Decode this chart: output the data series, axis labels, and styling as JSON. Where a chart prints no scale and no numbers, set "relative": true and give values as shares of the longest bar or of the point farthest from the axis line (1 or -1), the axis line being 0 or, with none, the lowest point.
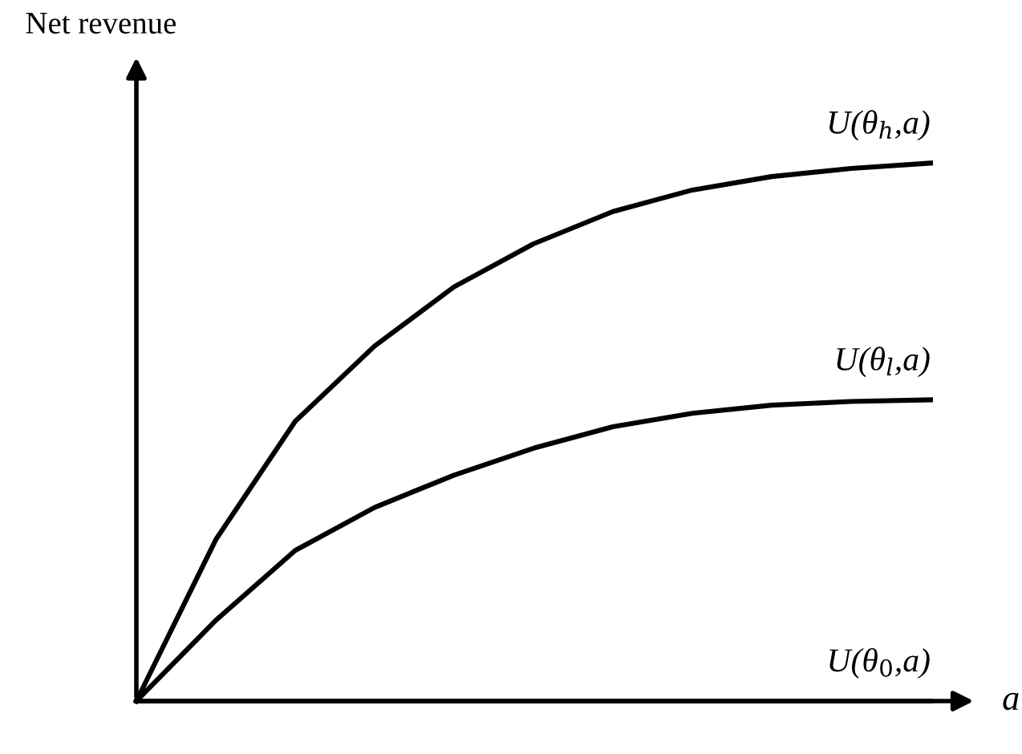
{
  "chart_data": {
    "type": "line",
    "relative": true,
    "xlabel": "a",
    "ylabel": "Net revenue",
    "categories": [
      null,
      null,
      null,
      null,
      null,
      null,
      null,
      null,
      null,
      null,
      null
    ],
    "legend": false,
    "grid": false,
    "marker": "none",
    "line_style": "solid",
    "series": [
      {
        "name": "U(θ$_{h}$,a)",
        "color": "#000000",
        "values": [
          0,
          0.3,
          0.52,
          0.66,
          0.77,
          0.85,
          0.91,
          0.95,
          0.975,
          0.99,
          1.0
        ]
      },
      {
        "name": "U(θ$_{l}$,a)",
        "color": "#000000",
        "values": [
          0,
          0.15,
          0.28,
          0.36,
          0.42,
          0.47,
          0.51,
          0.535,
          0.55,
          0.557,
          0.56
        ]
      },
      {
        "name": "U(θ$_{0}$,a)",
        "color": "#000000",
        "values": [
          0,
          0,
          0,
          0,
          0,
          0,
          0,
          0,
          0,
          0,
          0
        ]
      }
    ]
  }
}
